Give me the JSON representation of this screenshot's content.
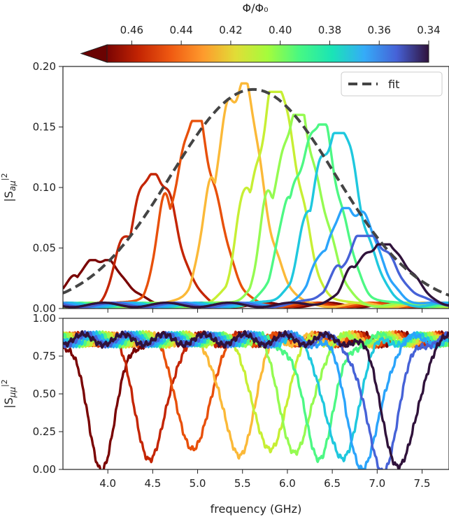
{
  "figure": {
    "colorbar": {
      "label": "Φ/Φ₀",
      "min": 0.34,
      "max": 0.47,
      "ticks": [
        "0.46",
        "0.44",
        "0.42",
        "0.40",
        "0.38",
        "0.36",
        "0.34"
      ],
      "tick_values": [
        0.46,
        0.44,
        0.42,
        0.4,
        0.38,
        0.36,
        0.34
      ],
      "colormap": "turbo (reversed: high flux = dark red, low flux = dark blue)",
      "extend": "left"
    },
    "xlabel": "frequency (GHz)",
    "legend": {
      "label": "fit",
      "placement": "top-right",
      "style": "dashed",
      "color": "#444444"
    }
  },
  "chart_data": [
    {
      "type": "line",
      "panel": "top",
      "ylabel": "|S_aμ|²",
      "xlim": [
        3.5,
        7.8
      ],
      "ylim": [
        0,
        0.2
      ],
      "x_ticks": [
        "4.0",
        "4.5",
        "5.0",
        "5.5",
        "6.0",
        "6.5",
        "7.0",
        "7.5"
      ],
      "y_ticks": [
        "0.00",
        "0.05",
        "0.10",
        "0.15",
        "0.20"
      ],
      "fit": {
        "center_ghz": 5.62,
        "peak": 0.181,
        "sigma_ghz": 0.92
      },
      "series": [
        {
          "flux": 0.465,
          "color": "#7a0403",
          "peak_freq": 3.93,
          "peak": 0.04
        },
        {
          "flux": 0.455,
          "color": "#c42503",
          "peak_freq": 4.52,
          "peak": 0.111
        },
        {
          "flux": 0.445,
          "color": "#e8500a",
          "peak_freq": 4.97,
          "peak": 0.155
        },
        {
          "flux": 0.43,
          "color": "#fbb938",
          "peak_freq": 5.47,
          "peak": 0.186
        },
        {
          "flux": 0.42,
          "color": "#c7ef34",
          "peak_freq": 5.87,
          "peak": 0.179
        },
        {
          "flux": 0.41,
          "color": "#95fb51",
          "peak_freq": 6.12,
          "peak": 0.16
        },
        {
          "flux": 0.4,
          "color": "#4df884",
          "peak_freq": 6.32,
          "peak": 0.152
        },
        {
          "flux": 0.39,
          "color": "#1fc8de",
          "peak_freq": 6.55,
          "peak": 0.145
        },
        {
          "flux": 0.38,
          "color": "#2ba4fb",
          "peak_freq": 6.72,
          "peak": 0.083
        },
        {
          "flux": 0.37,
          "color": "#4662d7",
          "peak_freq": 6.9,
          "peak": 0.06
        },
        {
          "flux": 0.355,
          "color": "#30123b",
          "peak_freq": 7.05,
          "peak": 0.053
        }
      ]
    },
    {
      "type": "line",
      "panel": "bottom",
      "ylabel": "|S_μμ|²",
      "xlim": [
        3.5,
        7.8
      ],
      "ylim": [
        0,
        1.0
      ],
      "x_ticks": [
        "4.0",
        "4.5",
        "5.0",
        "5.5",
        "6.0",
        "6.5",
        "7.0",
        "7.5"
      ],
      "y_ticks": [
        "0.00",
        "0.25",
        "0.50",
        "0.75",
        "1.00"
      ],
      "baseline": 0.86,
      "series": [
        {
          "flux": 0.465,
          "color": "#7a0403",
          "dip_freq": 3.93,
          "dip_min": 0.03
        },
        {
          "flux": 0.455,
          "color": "#c42503",
          "dip_freq": 4.48,
          "dip_min": 0.05
        },
        {
          "flux": 0.445,
          "color": "#e8500a",
          "dip_freq": 4.95,
          "dip_min": 0.1
        },
        {
          "flux": 0.43,
          "color": "#fbb938",
          "dip_freq": 5.45,
          "dip_min": 0.08
        },
        {
          "flux": 0.42,
          "color": "#c7ef34",
          "dip_freq": 5.8,
          "dip_min": 0.1
        },
        {
          "flux": 0.41,
          "color": "#95fb51",
          "dip_freq": 6.1,
          "dip_min": 0.1
        },
        {
          "flux": 0.4,
          "color": "#4df884",
          "dip_freq": 6.35,
          "dip_min": 0.1
        },
        {
          "flux": 0.39,
          "color": "#1fc8de",
          "dip_freq": 6.6,
          "dip_min": 0.05
        },
        {
          "flux": 0.38,
          "color": "#2ba4fb",
          "dip_freq": 6.85,
          "dip_min": 0.0
        },
        {
          "flux": 0.37,
          "color": "#4662d7",
          "dip_freq": 7.05,
          "dip_min": 0.0
        },
        {
          "flux": 0.355,
          "color": "#30123b",
          "dip_freq": 7.25,
          "dip_min": 0.0
        }
      ]
    }
  ]
}
